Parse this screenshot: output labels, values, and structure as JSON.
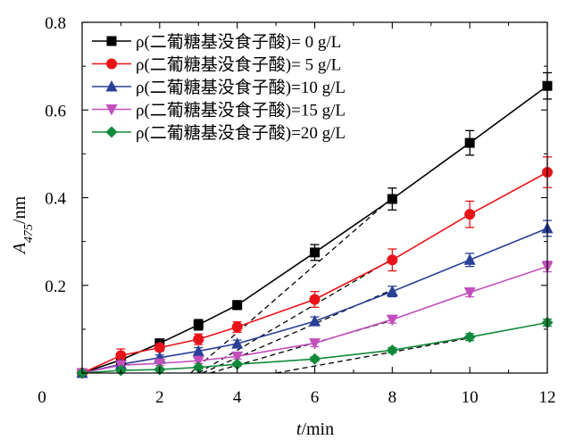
{
  "chart_data": {
    "type": "line",
    "xlabel": "t/min",
    "ylabel": "A475/nm",
    "x_ticks": [
      "0",
      "2",
      "4",
      "6",
      "8",
      "10",
      "12"
    ],
    "y_ticks": [
      "0.2",
      "0.4",
      "0.6",
      "0.8"
    ],
    "xlim": [
      0,
      12
    ],
    "ylim": [
      0,
      0.8
    ],
    "grid": false,
    "legend_position": "top-left",
    "x": [
      0,
      1,
      2,
      3,
      4,
      6,
      8,
      10,
      12
    ],
    "series": [
      {
        "name": "ρ(二葡糖基没食子酸)= 0 g/L",
        "marker": "square",
        "color": "#000000",
        "values": [
          0.0,
          0.03,
          0.068,
          0.11,
          0.155,
          0.275,
          0.397,
          0.525,
          0.655
        ],
        "errors": [
          0.0,
          0.01,
          0.006,
          0.012,
          0.01,
          0.018,
          0.025,
          0.028,
          0.03
        ]
      },
      {
        "name": "ρ(二葡糖基没食子酸)= 5 g/L",
        "marker": "circle",
        "color": "#e8141a",
        "values": [
          0.0,
          0.04,
          0.058,
          0.077,
          0.105,
          0.168,
          0.258,
          0.362,
          0.458
        ],
        "errors": [
          0.0,
          0.015,
          0.008,
          0.012,
          0.012,
          0.018,
          0.025,
          0.03,
          0.035
        ]
      },
      {
        "name": "ρ(二葡糖基没食子酸)=10 g/L",
        "marker": "triangle-up",
        "color": "#2a3f96",
        "values": [
          0.0,
          0.02,
          0.035,
          0.05,
          0.067,
          0.118,
          0.186,
          0.258,
          0.33
        ],
        "errors": [
          0.0,
          0.008,
          0.006,
          0.008,
          0.008,
          0.01,
          0.012,
          0.015,
          0.018
        ]
      },
      {
        "name": "ρ(二葡糖基没食子酸)=15 g/L",
        "marker": "triangle-down",
        "color": "#c34fbc",
        "values": [
          0.0,
          0.018,
          0.022,
          0.028,
          0.038,
          0.068,
          0.122,
          0.184,
          0.243
        ],
        "errors": [
          0.0,
          0.005,
          0.005,
          0.006,
          0.006,
          0.008,
          0.008,
          0.01,
          0.012
        ]
      },
      {
        "name": "ρ(二葡糖基没食子酸)=20 g/L",
        "marker": "diamond",
        "color": "#118a3b",
        "values": [
          0.0,
          0.006,
          0.008,
          0.013,
          0.02,
          0.032,
          0.052,
          0.082,
          0.115
        ],
        "errors": [
          0.0,
          0.003,
          0.003,
          0.003,
          0.004,
          0.005,
          0.006,
          0.008,
          0.008
        ]
      }
    ],
    "tangent_lines": [
      {
        "style": "dashed",
        "color": "#000000",
        "from": [
          2.8,
          0.0
        ],
        "to": [
          8,
          0.4
        ]
      },
      {
        "style": "dashed",
        "color": "#000000",
        "from": [
          3.0,
          0.0
        ],
        "to": [
          8,
          0.26
        ]
      },
      {
        "style": "dashed",
        "color": "#000000",
        "from": [
          3.1,
          0.0
        ],
        "to": [
          8,
          0.19
        ]
      },
      {
        "style": "dashed",
        "color": "#000000",
        "from": [
          3.3,
          0.0
        ],
        "to": [
          8,
          0.12
        ]
      },
      {
        "style": "dashed",
        "color": "#000000",
        "from": [
          5.0,
          0.0
        ],
        "to": [
          10,
          0.08
        ]
      }
    ]
  }
}
